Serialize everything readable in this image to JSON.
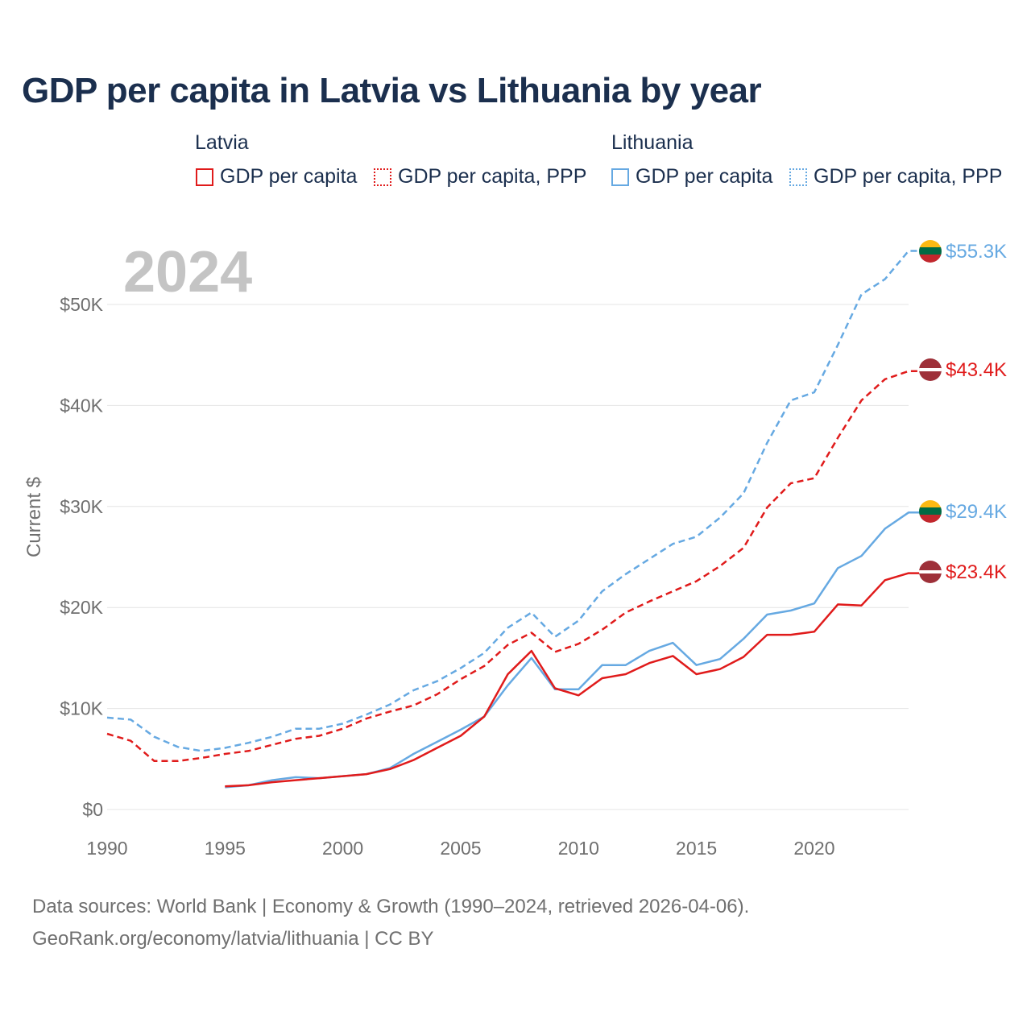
{
  "title": "GDP per capita in Latvia vs Lithuania by year",
  "legend": {
    "latvia": {
      "group": "Latvia",
      "gdp": "GDP per capita",
      "ppp": "GDP per capita, PPP",
      "color": "#e01b1b"
    },
    "lithuania": {
      "group": "Lithuania",
      "gdp": "GDP per capita",
      "ppp": "GDP per capita, PPP",
      "color": "#66a9e2"
    }
  },
  "source": {
    "line1": "Data sources: World Bank | Economy & Growth (1990–2024, retrieved 2026-04-06).",
    "line2": "GeoRank.org/economy/latvia/lithuania | CC BY"
  },
  "chart_data": {
    "type": "line",
    "year_label": "2024",
    "ylabel": "Current $",
    "xlim": [
      1990,
      2024
    ],
    "ylim": [
      0,
      55000
    ],
    "x_ticks": [
      1990,
      1995,
      2000,
      2005,
      2010,
      2015,
      2020
    ],
    "y_ticks": [
      {
        "value": 0,
        "label": "$0"
      },
      {
        "value": 10000,
        "label": "$10K"
      },
      {
        "value": 20000,
        "label": "$20K"
      },
      {
        "value": 30000,
        "label": "$30K"
      },
      {
        "value": 40000,
        "label": "$40K"
      },
      {
        "value": 50000,
        "label": "$50K"
      }
    ],
    "grid": true,
    "series": [
      {
        "name": "Lithuania GDP per capita, PPP",
        "country": "lithuania",
        "style": "dashed",
        "color": "#66a9e2",
        "x": [
          1990,
          1991,
          1992,
          1993,
          1994,
          1995,
          1996,
          1997,
          1998,
          1999,
          2000,
          2001,
          2002,
          2003,
          2004,
          2005,
          2006,
          2007,
          2008,
          2009,
          2010,
          2011,
          2012,
          2013,
          2014,
          2015,
          2016,
          2017,
          2018,
          2019,
          2020,
          2021,
          2022,
          2023,
          2024
        ],
        "values": [
          9100,
          8900,
          7200,
          6200,
          5800,
          6100,
          6600,
          7200,
          8000,
          8000,
          8500,
          9400,
          10400,
          11800,
          12700,
          14000,
          15500,
          18000,
          19500,
          17100,
          18700,
          21600,
          23300,
          24800,
          26300,
          27000,
          28900,
          31300,
          36300,
          40500,
          41300,
          46000,
          51000,
          52500,
          55300
        ],
        "end_label": "$55.3K"
      },
      {
        "name": "Latvia GDP per capita, PPP",
        "country": "latvia",
        "style": "dashed",
        "color": "#e01b1b",
        "x": [
          1990,
          1991,
          1992,
          1993,
          1994,
          1995,
          1996,
          1997,
          1998,
          1999,
          2000,
          2001,
          2002,
          2003,
          2004,
          2005,
          2006,
          2007,
          2008,
          2009,
          2010,
          2011,
          2012,
          2013,
          2014,
          2015,
          2016,
          2017,
          2018,
          2019,
          2020,
          2021,
          2022,
          2023,
          2024
        ],
        "values": [
          7500,
          6800,
          4800,
          4800,
          5100,
          5500,
          5800,
          6400,
          7000,
          7300,
          8000,
          9000,
          9700,
          10300,
          11400,
          12900,
          14200,
          16300,
          17500,
          15600,
          16400,
          17800,
          19500,
          20600,
          21600,
          22600,
          24100,
          25900,
          29900,
          32300,
          32800,
          36800,
          40500,
          42600,
          43400
        ],
        "end_label": "$43.4K"
      },
      {
        "name": "Lithuania GDP per capita",
        "country": "lithuania",
        "style": "solid",
        "color": "#66a9e2",
        "x": [
          1995,
          1996,
          1997,
          1998,
          1999,
          2000,
          2001,
          2002,
          2003,
          2004,
          2005,
          2006,
          2007,
          2008,
          2009,
          2010,
          2011,
          2012,
          2013,
          2014,
          2015,
          2016,
          2017,
          2018,
          2019,
          2020,
          2021,
          2022,
          2023,
          2024
        ],
        "values": [
          2200,
          2400,
          2900,
          3200,
          3100,
          3300,
          3500,
          4100,
          5500,
          6700,
          7900,
          9200,
          12300,
          15000,
          11900,
          11900,
          14300,
          14300,
          15700,
          16500,
          14300,
          14900,
          16900,
          19300,
          19700,
          20400,
          23900,
          25100,
          27800,
          29400
        ],
        "end_label": "$29.4K"
      },
      {
        "name": "Latvia GDP per capita",
        "country": "latvia",
        "style": "solid",
        "color": "#e01b1b",
        "x": [
          1995,
          1996,
          1997,
          1998,
          1999,
          2000,
          2001,
          2002,
          2003,
          2004,
          2005,
          2006,
          2007,
          2008,
          2009,
          2010,
          2011,
          2012,
          2013,
          2014,
          2015,
          2016,
          2017,
          2018,
          2019,
          2020,
          2021,
          2022,
          2023,
          2024
        ],
        "values": [
          2300,
          2400,
          2700,
          2900,
          3100,
          3300,
          3500,
          4000,
          4900,
          6100,
          7300,
          9200,
          13400,
          15700,
          12000,
          11300,
          13000,
          13400,
          14500,
          15200,
          13400,
          13900,
          15100,
          17300,
          17300,
          17600,
          20300,
          20200,
          22700,
          23400
        ],
        "end_label": "$23.4K"
      }
    ]
  }
}
